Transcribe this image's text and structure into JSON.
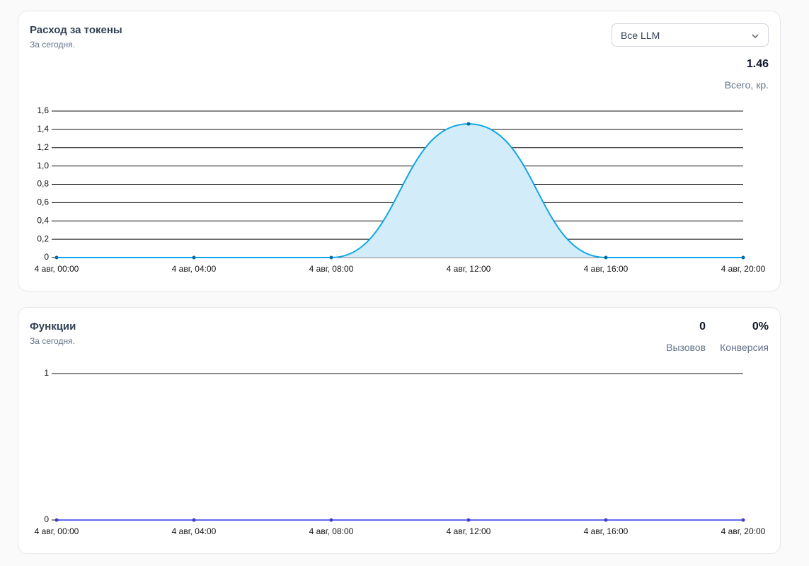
{
  "cards": [
    {
      "title": "Расход за токены",
      "subtitle": "За сегодня.",
      "select": "Все LLM",
      "stats": [
        {
          "value": "1.46",
          "label": "Всего, кр."
        }
      ],
      "chart_data": {
        "type": "area",
        "x": [
          "4 авг, 00:00",
          "4 авг, 04:00",
          "4 авг, 08:00",
          "4 авг, 12:00",
          "4 авг, 16:00",
          "4 авг, 20:00"
        ],
        "values": [
          0,
          0,
          0,
          1.46,
          0,
          0
        ],
        "color": "#0ea5e9",
        "fill": "#d3ecf9",
        "point_color": "#0369a1",
        "ylim": [
          0,
          1.6
        ],
        "yticks": [
          0,
          {
            "value": 0.2,
            "label": "0,2"
          },
          {
            "value": 0.4,
            "label": "0,4"
          },
          {
            "value": 0.6,
            "label": "0,6"
          },
          {
            "value": 0.8,
            "label": "0,8"
          },
          {
            "value": 1.0,
            "label": "1,0"
          },
          {
            "value": 1.2,
            "label": "1,2"
          },
          {
            "value": 1.4,
            "label": "1,4"
          },
          {
            "value": 1.6,
            "label": "1,6"
          }
        ],
        "grid": true
      }
    },
    {
      "title": "Функции",
      "subtitle": "За сегодня.",
      "stats": [
        {
          "value": "0",
          "label": "Вызовов"
        },
        {
          "value": "0%",
          "label": "Конверсия"
        }
      ],
      "chart_data": {
        "type": "line",
        "x": [
          "4 авг, 00:00",
          "4 авг, 04:00",
          "4 авг, 08:00",
          "4 авг, 12:00",
          "4 авг, 16:00",
          "4 авг, 20:00"
        ],
        "values": [
          0,
          0,
          0,
          0,
          0,
          0
        ],
        "color": "#6366f1",
        "point_color": "#4338ca",
        "ylim": [
          0,
          1
        ],
        "yticks": [
          0,
          1
        ],
        "grid": true
      }
    }
  ]
}
